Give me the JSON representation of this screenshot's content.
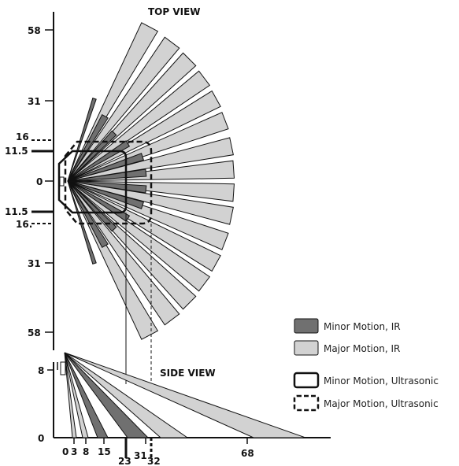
{
  "top_view": {
    "title": "TOP VIEW",
    "y_labels": {
      "t58": "58",
      "t31": "31",
      "t16": "16",
      "t115": "11.5",
      "zero": "0",
      "b115": "11.5",
      "b16": "16.",
      "b31": "31",
      "b58": "58"
    }
  },
  "side_view": {
    "title": "SIDE VIEW",
    "y_labels": {
      "top": "8",
      "bottom": "0"
    },
    "x_labels": {
      "x0": "0",
      "x3": "3",
      "x8": "8",
      "x15": "15",
      "x23": "23",
      "x31": "31",
      "x32": "32",
      "x68": "68"
    }
  },
  "legend": {
    "minor_ir": "Minor Motion, IR",
    "major_ir": "Major Motion, IR",
    "minor_us": "Minor Motion, Ultrasonic",
    "major_us": "Major Motion, Ultrasonic"
  },
  "colors": {
    "minor_ir": "#707070",
    "major_ir": "#d2d2d2",
    "outline": "#1a1a1a"
  }
}
